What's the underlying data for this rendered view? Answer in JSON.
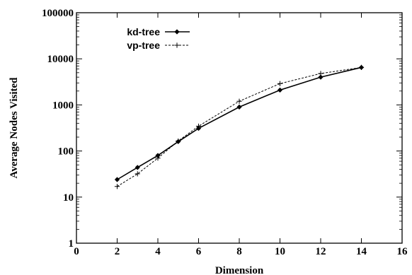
{
  "chart_data": {
    "type": "line",
    "xlabel": "Dimension",
    "ylabel": "Average Nodes Visited",
    "xlim": [
      0,
      16
    ],
    "ylim": [
      1,
      100000
    ],
    "yscale": "log",
    "grid": false,
    "legend_position": "top-left",
    "x_ticks": [
      0,
      2,
      4,
      6,
      8,
      10,
      12,
      14,
      16
    ],
    "x_tick_labels": [
      "0",
      "2",
      "4",
      "6",
      "8",
      "10",
      "12",
      "14",
      "16"
    ],
    "y_ticks": [
      1,
      10,
      100,
      1000,
      10000,
      100000
    ],
    "y_tick_labels": [
      "1",
      "10",
      "100",
      "1000",
      "10000",
      "100000"
    ],
    "x": [
      2,
      3,
      4,
      5,
      6,
      8,
      10,
      12,
      14
    ],
    "series": [
      {
        "name": "kd-tree",
        "style": "solid",
        "marker": "diamond",
        "values": [
          24,
          44,
          80,
          160,
          310,
          900,
          2100,
          4000,
          6500
        ]
      },
      {
        "name": "vp-tree",
        "style": "dashed",
        "marker": "plus",
        "values": [
          17,
          32,
          70,
          165,
          345,
          1200,
          2900,
          4800,
          6500
        ]
      }
    ]
  }
}
